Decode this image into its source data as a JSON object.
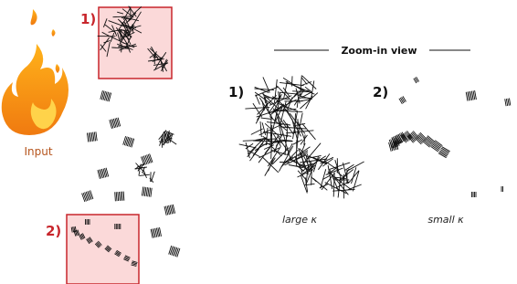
{
  "input_panel": {
    "label": "Input",
    "zoom_labels": [
      "1)",
      "2)"
    ]
  },
  "zoom_view": {
    "title": "Zoom-in view",
    "panels": [
      {
        "label": "1)",
        "caption": "large κ"
      },
      {
        "label": "2)",
        "caption": "small κ"
      }
    ]
  }
}
